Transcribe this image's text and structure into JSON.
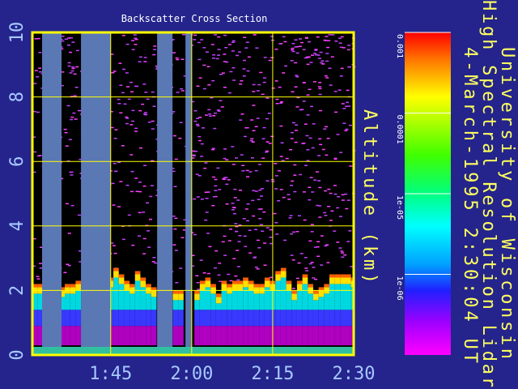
{
  "chart_data": {
    "type": "lidar",
    "title": "Backscatter Cross Section",
    "ylabel": "Altitude (km)",
    "annotations": [
      "University of Wisconsin",
      "High Spectral Resolution Lidar",
      "4-March-1995  2:30:04 UT"
    ],
    "xlim": [
      90.5,
      150
    ],
    "xticks": [
      {
        "value": 105,
        "label": "1:45"
      },
      {
        "value": 120,
        "label": "2:00"
      },
      {
        "value": 135,
        "label": "2:15"
      },
      {
        "value": 150,
        "label": "2:30"
      }
    ],
    "ylim": [
      0,
      10
    ],
    "yticks": [
      0,
      2,
      4,
      6,
      8,
      10
    ],
    "grid": true,
    "x": [
      91,
      92,
      93,
      94,
      95,
      96,
      97,
      98,
      99,
      100,
      101,
      102,
      103,
      104,
      105,
      106,
      107,
      108,
      109,
      110,
      111,
      112,
      113,
      114,
      115,
      116,
      117,
      118,
      119,
      120,
      121,
      122,
      123,
      124,
      125,
      126,
      127,
      128,
      129,
      130,
      131,
      132,
      133,
      134,
      135,
      136,
      137,
      138,
      139,
      140,
      141,
      142,
      143,
      144,
      145,
      146,
      147,
      148,
      149,
      150
    ],
    "values": [
      2.2,
      2.2,
      null,
      null,
      null,
      2.1,
      2.2,
      2.2,
      2.3,
      null,
      null,
      null,
      null,
      null,
      2.4,
      2.7,
      2.5,
      2.3,
      2.2,
      2.6,
      2.4,
      2.2,
      2.1,
      null,
      null,
      null,
      2.0,
      2.0,
      null,
      null,
      2.0,
      2.3,
      2.4,
      2.2,
      1.9,
      2.3,
      2.2,
      2.3,
      2.3,
      2.4,
      2.3,
      2.2,
      2.2,
      2.4,
      2.3,
      2.6,
      2.7,
      2.3,
      2.0,
      2.3,
      2.5,
      2.2,
      2.0,
      2.1,
      2.2,
      2.5,
      2.5,
      2.5,
      2.5,
      2.4
    ],
    "gaps": [
      [
        92.3,
        95.9
      ],
      [
        99.5,
        105.05
      ],
      [
        113.6,
        116.45
      ],
      [
        118.85,
        120.05
      ]
    ],
    "gap_color": "#5a78b4",
    "colorbar": {
      "log": true,
      "lim": [
        1e-07,
        0.001
      ],
      "ticks": [
        0.001,
        0.0001,
        {
          "value": 1e-05,
          "label": "1e-05"
        },
        {
          "value": 1e-06,
          "label": "1e-06"
        }
      ]
    }
  }
}
